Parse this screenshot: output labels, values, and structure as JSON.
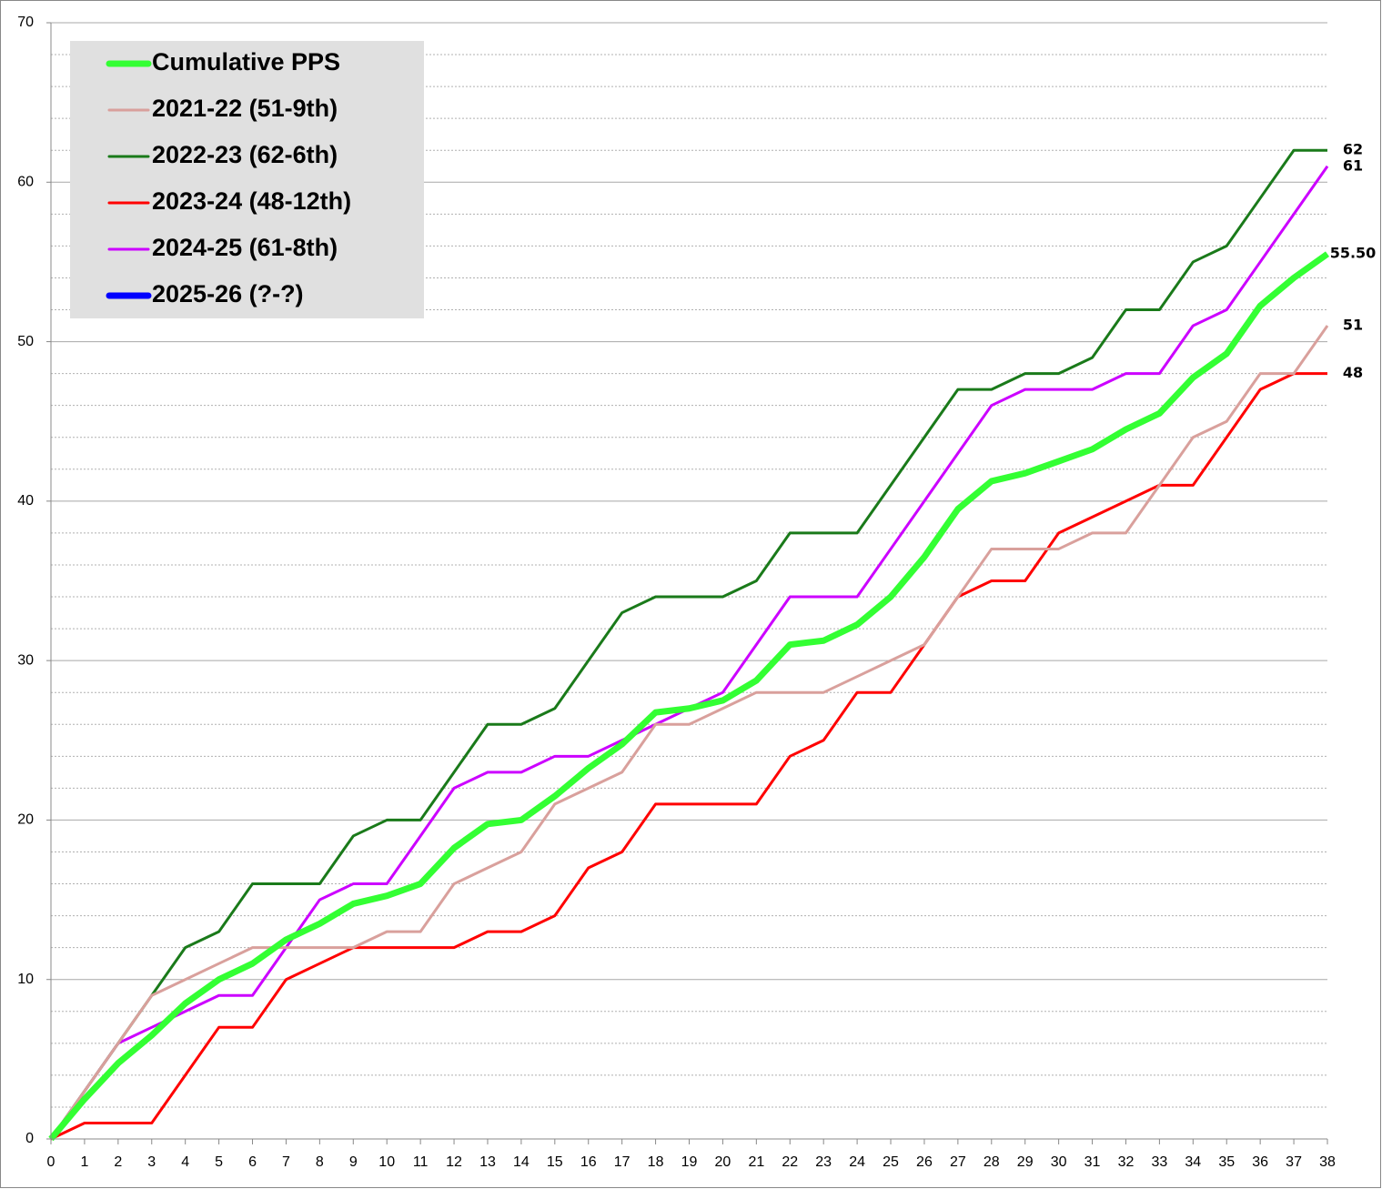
{
  "chart_data": {
    "type": "line",
    "x": [
      0,
      1,
      2,
      3,
      4,
      5,
      6,
      7,
      8,
      9,
      10,
      11,
      12,
      13,
      14,
      15,
      16,
      17,
      18,
      19,
      20,
      21,
      22,
      23,
      24,
      25,
      26,
      27,
      28,
      29,
      30,
      31,
      32,
      33,
      34,
      35,
      36,
      37,
      38
    ],
    "xlim": [
      0,
      38
    ],
    "xticks": [
      0,
      1,
      2,
      3,
      4,
      5,
      6,
      7,
      8,
      9,
      10,
      11,
      12,
      13,
      14,
      15,
      16,
      17,
      18,
      19,
      20,
      21,
      22,
      23,
      24,
      25,
      26,
      27,
      28,
      29,
      30,
      31,
      32,
      33,
      34,
      35,
      36,
      37,
      38
    ],
    "ylim": [
      0,
      70
    ],
    "yticks": [
      0,
      10,
      20,
      30,
      40,
      50,
      60,
      70
    ],
    "minor_yticks": [
      2,
      4,
      6,
      8,
      12,
      14,
      16,
      18,
      22,
      24,
      26,
      28,
      32,
      34,
      36,
      38,
      42,
      44,
      46,
      48,
      52,
      54,
      56,
      58,
      62,
      64,
      66,
      68
    ],
    "grid": true,
    "legend": "top-left",
    "series": [
      {
        "name": "Cumulative PPS",
        "color": "#33ff33",
        "width": 7,
        "label_last": true,
        "values": [
          0,
          2.5,
          4.75,
          6.5,
          8.5,
          10,
          11,
          12.5,
          13.5,
          14.75,
          15.25,
          16,
          18.25,
          19.75,
          20,
          21.5,
          23.25,
          24.75,
          26.75,
          27,
          27.5,
          28.75,
          31,
          31.25,
          32.25,
          34,
          36.5,
          39.5,
          41.25,
          41.75,
          42.5,
          43.25,
          44.5,
          45.5,
          47.75,
          49.25,
          52.25,
          54,
          55.5
        ],
        "value_labels": [
          null,
          null,
          null,
          null,
          null,
          null,
          null,
          null,
          null,
          null,
          null,
          null,
          null,
          null,
          null,
          null,
          null,
          null,
          null,
          null,
          null,
          null,
          null,
          null,
          null,
          null,
          null,
          null,
          null,
          null,
          null,
          null,
          null,
          null,
          null,
          null,
          null,
          null,
          "55.50"
        ]
      },
      {
        "name": "2021-22 (51-9th)",
        "color": "#d9a09c",
        "width": 3,
        "label_last": true,
        "values": [
          0,
          3,
          6,
          9,
          10,
          11,
          12,
          12,
          12,
          12,
          13,
          13,
          16,
          17,
          18,
          21,
          22,
          23,
          26,
          26,
          27,
          28,
          28,
          28,
          29,
          30,
          31,
          34,
          37,
          37,
          37,
          38,
          38,
          41,
          44,
          45,
          48,
          48,
          51
        ]
      },
      {
        "name": "2022-23 (62-6th)",
        "color": "#1a7a1a",
        "width": 3,
        "label_last": true,
        "values": [
          0,
          3,
          6,
          9,
          12,
          13,
          16,
          16,
          16,
          19,
          20,
          20,
          23,
          26,
          26,
          27,
          30,
          33,
          34,
          34,
          34,
          35,
          38,
          38,
          38,
          41,
          44,
          47,
          47,
          48,
          48,
          49,
          52,
          52,
          55,
          56,
          59,
          62,
          62
        ]
      },
      {
        "name": "2023-24 (48-12th)",
        "color": "#ff0000",
        "width": 3,
        "label_last": true,
        "values": [
          0,
          1,
          1,
          1,
          4,
          7,
          7,
          10,
          11,
          12,
          12,
          12,
          12,
          13,
          13,
          14,
          17,
          18,
          21,
          21,
          21,
          21,
          24,
          25,
          28,
          28,
          31,
          34,
          35,
          35,
          38,
          39,
          40,
          41,
          41,
          44,
          47,
          48,
          48
        ]
      },
      {
        "name": "2024-25 (61-8th)",
        "color": "#cc00ff",
        "width": 3,
        "label_last": true,
        "values": [
          0,
          3,
          6,
          7,
          8,
          9,
          9,
          12,
          15,
          16,
          16,
          19,
          22,
          23,
          23,
          24,
          24,
          25,
          26,
          27,
          28,
          31,
          34,
          34,
          34,
          37,
          40,
          43,
          46,
          47,
          47,
          47,
          48,
          48,
          51,
          52,
          55,
          58,
          61
        ]
      },
      {
        "name": "2025-26 (?-?)",
        "color": "#0000ff",
        "width": 7,
        "label_last": true,
        "values": [
          null,
          null,
          null,
          null,
          null,
          null,
          null,
          null,
          null,
          null,
          null,
          null,
          null,
          null,
          null,
          null,
          null,
          null,
          null,
          null,
          null,
          null,
          null,
          null,
          null,
          null,
          null,
          null,
          null,
          null,
          null,
          null,
          null,
          null,
          null,
          null,
          null,
          null,
          null
        ]
      }
    ]
  }
}
